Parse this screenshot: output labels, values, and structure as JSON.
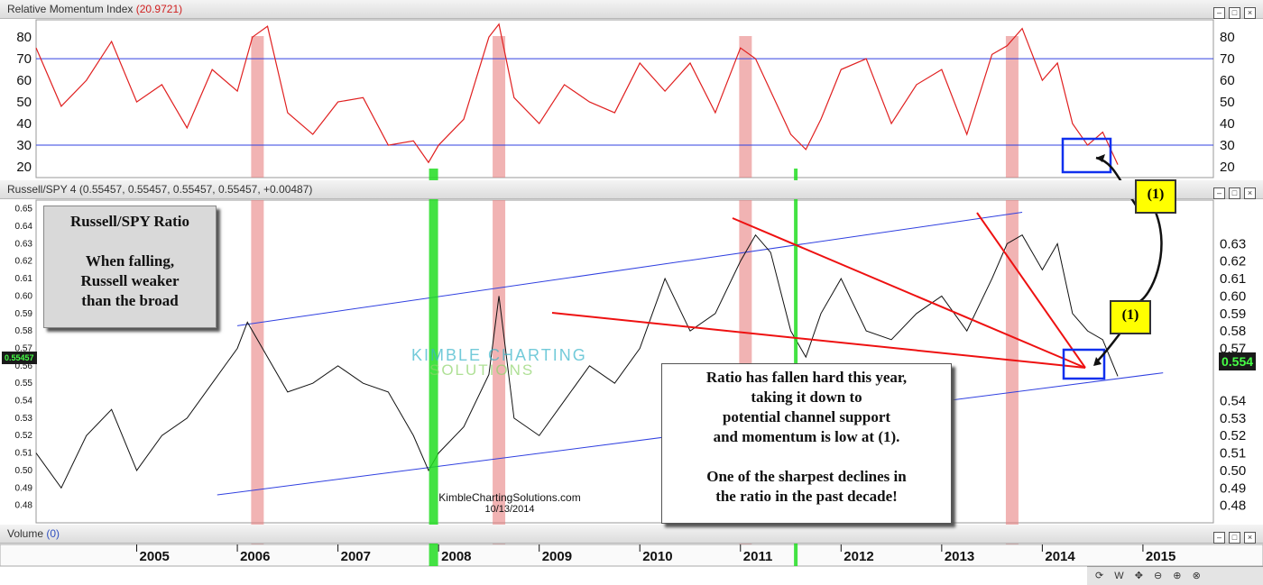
{
  "header_rmi": {
    "label": "Relative Momentum Index",
    "value": "(20.9721)"
  },
  "header_ratio": {
    "label": "Russell/SPY 4",
    "value": "(0.55457, 0.55457, 0.55457, 0.55457, +0.00487)"
  },
  "header_volume": {
    "label": "Volume",
    "value": "(0)"
  },
  "callout_left": "Russell/SPY Ratio\n\nWhen falling,\nRussell weaker\nthan the broad",
  "callout_right": "Ratio has fallen hard this year,\ntaking it down to\npotential channel support\nand momentum is low at (1).\n\nOne of the sharpest declines in\nthe ratio in the past decade!",
  "tag_label": "(1)",
  "watermark_line1": "KIMBLE CHARTING",
  "watermark_line2": "SOLUTIONS",
  "footer_site": "KimbleChartingSolutions.com",
  "footer_date": "10/13/2014",
  "price_left": "0.55457",
  "price_right": "0.554",
  "bottom_bar": [
    "W"
  ],
  "chart_data": [
    {
      "type": "line",
      "title": "Relative Momentum Index",
      "ylim": [
        15,
        88
      ],
      "yticks": [
        20,
        30,
        40,
        50,
        60,
        70,
        80
      ],
      "reference_lines": [
        30,
        70
      ],
      "x": [
        2004.0,
        2004.25,
        2004.5,
        2004.75,
        2005.0,
        2005.25,
        2005.5,
        2005.75,
        2006.0,
        2006.15,
        2006.3,
        2006.5,
        2006.75,
        2007.0,
        2007.25,
        2007.5,
        2007.75,
        2007.9,
        2008.0,
        2008.25,
        2008.5,
        2008.6,
        2008.75,
        2009.0,
        2009.25,
        2009.5,
        2009.75,
        2010.0,
        2010.25,
        2010.5,
        2010.75,
        2011.0,
        2011.15,
        2011.3,
        2011.5,
        2011.65,
        2011.8,
        2012.0,
        2012.25,
        2012.5,
        2012.75,
        2013.0,
        2013.25,
        2013.5,
        2013.65,
        2013.8,
        2014.0,
        2014.15,
        2014.3,
        2014.45,
        2014.6,
        2014.75
      ],
      "values": [
        75,
        48,
        60,
        78,
        50,
        58,
        38,
        65,
        55,
        80,
        85,
        45,
        35,
        50,
        52,
        30,
        32,
        22,
        30,
        42,
        80,
        86,
        52,
        40,
        58,
        50,
        45,
        68,
        55,
        68,
        45,
        75,
        70,
        55,
        35,
        28,
        42,
        65,
        70,
        40,
        58,
        65,
        35,
        72,
        76,
        84,
        60,
        68,
        40,
        30,
        36,
        21
      ],
      "color": "#e02020"
    },
    {
      "type": "line",
      "title": "Russell/SPY 4",
      "ylim": [
        0.47,
        0.655
      ],
      "yticks": [
        0.48,
        0.49,
        0.5,
        0.51,
        0.52,
        0.53,
        0.54,
        0.55,
        0.56,
        0.57,
        0.58,
        0.59,
        0.6,
        0.61,
        0.62,
        0.63,
        0.64,
        0.65
      ],
      "right_yticks": [
        0.48,
        0.49,
        0.5,
        0.51,
        0.52,
        0.53,
        0.54,
        0.56,
        0.57,
        0.58,
        0.59,
        0.6,
        0.61,
        0.62,
        0.63
      ],
      "xticks": [
        "2005",
        "2006",
        "2007",
        "2008",
        "2009",
        "2010",
        "2011",
        "2012",
        "2013",
        "2014",
        "2015"
      ],
      "x": [
        2004.0,
        2004.25,
        2004.5,
        2004.75,
        2005.0,
        2005.25,
        2005.5,
        2005.75,
        2006.0,
        2006.1,
        2006.25,
        2006.5,
        2006.75,
        2007.0,
        2007.25,
        2007.5,
        2007.75,
        2007.9,
        2008.0,
        2008.25,
        2008.5,
        2008.6,
        2008.75,
        2009.0,
        2009.25,
        2009.5,
        2009.75,
        2010.0,
        2010.25,
        2010.5,
        2010.75,
        2011.0,
        2011.15,
        2011.3,
        2011.5,
        2011.65,
        2011.8,
        2012.0,
        2012.25,
        2012.5,
        2012.75,
        2013.0,
        2013.25,
        2013.5,
        2013.65,
        2013.8,
        2014.0,
        2014.15,
        2014.3,
        2014.45,
        2014.6,
        2014.75
      ],
      "values": [
        0.51,
        0.49,
        0.52,
        0.535,
        0.5,
        0.52,
        0.53,
        0.55,
        0.57,
        0.585,
        0.57,
        0.545,
        0.55,
        0.56,
        0.55,
        0.545,
        0.52,
        0.5,
        0.51,
        0.525,
        0.555,
        0.6,
        0.53,
        0.52,
        0.54,
        0.56,
        0.55,
        0.57,
        0.61,
        0.58,
        0.59,
        0.62,
        0.635,
        0.625,
        0.58,
        0.565,
        0.59,
        0.61,
        0.58,
        0.575,
        0.59,
        0.6,
        0.58,
        0.61,
        0.63,
        0.635,
        0.615,
        0.63,
        0.59,
        0.58,
        0.575,
        0.554
      ],
      "color": "#111111"
    }
  ],
  "annotations": {
    "red_bars_years": [
      2006.2,
      2008.6,
      2011.05,
      2013.7
    ],
    "green_bars_years": [
      2007.95,
      2011.55
    ],
    "channel_upper": [
      [
        2006.0,
        0.583
      ],
      [
        2013.8,
        0.648
      ]
    ],
    "channel_lower": [
      [
        2005.8,
        0.486
      ],
      [
        2015.2,
        0.556
      ]
    ]
  }
}
